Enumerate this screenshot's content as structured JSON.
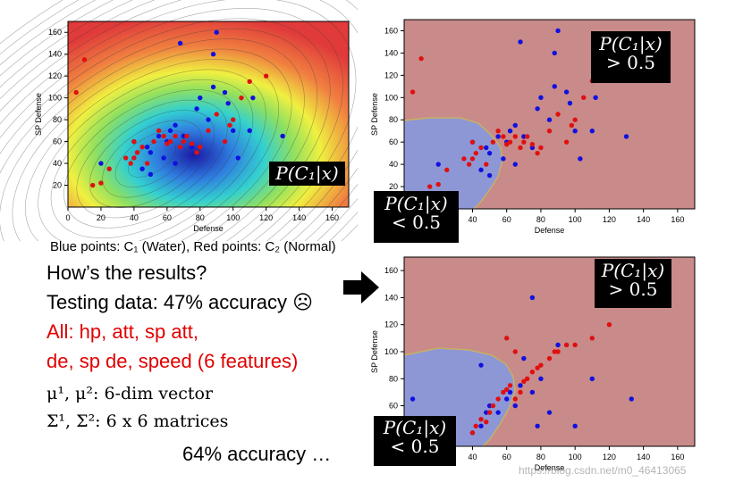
{
  "chart_data": [
    {
      "type": "scatter",
      "title": "",
      "xlabel": "Defense",
      "ylabel": "SP Defense",
      "xlim": [
        0,
        170
      ],
      "ylim": [
        0,
        170
      ],
      "xticks": [
        0,
        20,
        40,
        60,
        80,
        100,
        120,
        140,
        160
      ],
      "yticks": [
        20,
        40,
        60,
        80,
        100,
        120,
        140,
        160
      ],
      "background": "probability contour",
      "overlay_label": "P(C₁|x)",
      "series": [
        {
          "color": "#1010e0",
          "points": [
            [
              20,
              40
            ],
            [
              40,
              60
            ],
            [
              45,
              35
            ],
            [
              50,
              50
            ],
            [
              50,
              30
            ],
            [
              55,
              65
            ],
            [
              60,
              60
            ],
            [
              62,
              70
            ],
            [
              65,
              40
            ],
            [
              65,
              75
            ],
            [
              70,
              65
            ],
            [
              75,
              55
            ],
            [
              78,
              90
            ],
            [
              80,
              100
            ],
            [
              85,
              80
            ],
            [
              88,
              110
            ],
            [
              88,
              140
            ],
            [
              95,
              105
            ],
            [
              97,
              95
            ],
            [
              100,
              70
            ],
            [
              103,
              45
            ],
            [
              110,
              70
            ],
            [
              112,
              100
            ],
            [
              130,
              65
            ],
            [
              68,
              150
            ],
            [
              90,
              160
            ],
            [
              58,
              45
            ],
            [
              48,
              55
            ]
          ]
        },
        {
          "color": "#e01010",
          "points": [
            [
              5,
              105
            ],
            [
              10,
              135
            ],
            [
              15,
              20
            ],
            [
              20,
              22
            ],
            [
              25,
              35
            ],
            [
              35,
              45
            ],
            [
              38,
              40
            ],
            [
              40,
              45
            ],
            [
              42,
              50
            ],
            [
              45,
              55
            ],
            [
              48,
              40
            ],
            [
              52,
              60
            ],
            [
              55,
              70
            ],
            [
              58,
              65
            ],
            [
              60,
              58
            ],
            [
              62,
              60
            ],
            [
              65,
              65
            ],
            [
              68,
              55
            ],
            [
              70,
              60
            ],
            [
              72,
              65
            ],
            [
              75,
              58
            ],
            [
              78,
              50
            ],
            [
              80,
              55
            ],
            [
              85,
              70
            ],
            [
              90,
              85
            ],
            [
              95,
              60
            ],
            [
              98,
              75
            ],
            [
              100,
              80
            ],
            [
              105,
              100
            ],
            [
              110,
              115
            ],
            [
              120,
              120
            ],
            [
              40,
              60
            ]
          ]
        }
      ]
    },
    {
      "type": "scatter",
      "title": "",
      "xlabel": "Defense",
      "ylabel": "SP Defense",
      "xlim": [
        0,
        170
      ],
      "ylim": [
        0,
        170
      ],
      "xticks": [
        20,
        40,
        60,
        80,
        100,
        120,
        140,
        160
      ],
      "yticks": [
        20,
        40,
        60,
        80,
        100,
        120,
        140,
        160
      ],
      "background": "decision regions",
      "series": [
        {
          "color": "#1010e0",
          "points": [
            [
              20,
              40
            ],
            [
              40,
              60
            ],
            [
              45,
              35
            ],
            [
              50,
              50
            ],
            [
              50,
              30
            ],
            [
              55,
              65
            ],
            [
              60,
              60
            ],
            [
              62,
              70
            ],
            [
              65,
              40
            ],
            [
              65,
              75
            ],
            [
              70,
              65
            ],
            [
              75,
              55
            ],
            [
              78,
              90
            ],
            [
              80,
              100
            ],
            [
              85,
              80
            ],
            [
              88,
              110
            ],
            [
              88,
              140
            ],
            [
              95,
              105
            ],
            [
              97,
              95
            ],
            [
              100,
              70
            ],
            [
              103,
              45
            ],
            [
              110,
              70
            ],
            [
              112,
              100
            ],
            [
              130,
              65
            ],
            [
              68,
              150
            ],
            [
              90,
              160
            ],
            [
              58,
              45
            ],
            [
              48,
              55
            ]
          ]
        },
        {
          "color": "#e01010",
          "points": [
            [
              5,
              105
            ],
            [
              10,
              135
            ],
            [
              15,
              20
            ],
            [
              20,
              22
            ],
            [
              25,
              35
            ],
            [
              35,
              45
            ],
            [
              38,
              40
            ],
            [
              40,
              45
            ],
            [
              42,
              50
            ],
            [
              45,
              55
            ],
            [
              48,
              40
            ],
            [
              52,
              60
            ],
            [
              55,
              70
            ],
            [
              58,
              65
            ],
            [
              60,
              58
            ],
            [
              62,
              60
            ],
            [
              65,
              65
            ],
            [
              68,
              55
            ],
            [
              70,
              60
            ],
            [
              72,
              65
            ],
            [
              75,
              58
            ],
            [
              78,
              50
            ],
            [
              80,
              55
            ],
            [
              85,
              70
            ],
            [
              90,
              85
            ],
            [
              95,
              60
            ],
            [
              98,
              75
            ],
            [
              100,
              80
            ],
            [
              105,
              100
            ],
            [
              110,
              115
            ],
            [
              120,
              120
            ],
            [
              40,
              60
            ]
          ]
        }
      ]
    },
    {
      "type": "scatter",
      "title": "",
      "xlabel": "Defense",
      "ylabel": "SP Defense",
      "xlim": [
        0,
        170
      ],
      "ylim": [
        30,
        170
      ],
      "xticks": [
        40,
        60,
        80,
        100,
        120,
        140,
        160
      ],
      "yticks": [
        40,
        60,
        80,
        100,
        120,
        140,
        160
      ],
      "background": "decision regions",
      "series": [
        {
          "color": "#1010e0",
          "points": [
            [
              5,
              65
            ],
            [
              40,
              40
            ],
            [
              45,
              45
            ],
            [
              48,
              55
            ],
            [
              50,
              60
            ],
            [
              55,
              55
            ],
            [
              60,
              65
            ],
            [
              62,
              70
            ],
            [
              65,
              60
            ],
            [
              68,
              75
            ],
            [
              70,
              95
            ],
            [
              75,
              70
            ],
            [
              80,
              80
            ],
            [
              85,
              55
            ],
            [
              90,
              105
            ],
            [
              100,
              45
            ],
            [
              110,
              80
            ],
            [
              133,
              65
            ],
            [
              75,
              140
            ],
            [
              78,
              45
            ],
            [
              45,
              90
            ]
          ]
        },
        {
          "color": "#e01010",
          "points": [
            [
              40,
              40
            ],
            [
              42,
              45
            ],
            [
              45,
              50
            ],
            [
              48,
              48
            ],
            [
              50,
              55
            ],
            [
              52,
              60
            ],
            [
              55,
              65
            ],
            [
              58,
              70
            ],
            [
              60,
              72
            ],
            [
              62,
              75
            ],
            [
              65,
              65
            ],
            [
              68,
              70
            ],
            [
              70,
              78
            ],
            [
              72,
              80
            ],
            [
              75,
              85
            ],
            [
              78,
              88
            ],
            [
              80,
              90
            ],
            [
              85,
              95
            ],
            [
              88,
              100
            ],
            [
              90,
              100
            ],
            [
              95,
              105
            ],
            [
              100,
              105
            ],
            [
              110,
              110
            ],
            [
              120,
              120
            ],
            [
              60,
              110
            ],
            [
              65,
              100
            ]
          ]
        }
      ]
    }
  ],
  "labels": {
    "tag_top_left": "P(C₁|x)",
    "tag_top_right_a": "P(C₁|x)",
    "tag_top_right_b": "> 0.5",
    "tag_mid_a": "P(C₁|x)",
    "tag_mid_b": "< 0.5",
    "tag_bot_right_a": "P(C₁|x)",
    "tag_bot_right_b": "> 0.5",
    "tag_bot_left_a": "P(C₁|x)",
    "tag_bot_left_b": "< 0.5"
  },
  "text": {
    "caption": "Blue points: C₁ (Water), Red points: C₂ (Normal)",
    "q": "How’s the results?",
    "testing": "Testing data: 47% accuracy ☹",
    "all1": "All: hp, att, sp att,",
    "all2": "de, sp de, speed (6 features)",
    "mu": "μ¹, μ²: 6-dim vector",
    "sigma": "Σ¹, Σ²: 6 x 6 matrices",
    "acc64": "64% accuracy …",
    "watermark": "https://blog.csdn.net/m0_46413065"
  },
  "colors": {
    "region_red": "#c98a8a",
    "region_blue": "#8e97d6",
    "dot_blue": "#1010e0",
    "dot_red": "#e01010"
  }
}
